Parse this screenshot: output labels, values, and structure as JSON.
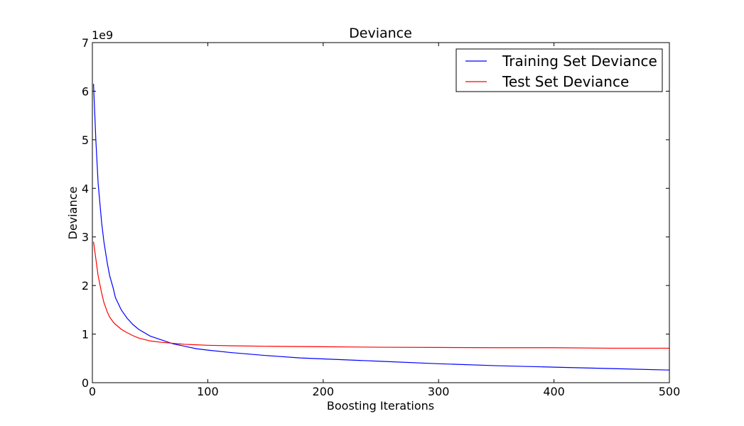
{
  "chart_data": {
    "type": "line",
    "title": "Deviance",
    "xlabel": "Boosting Iterations",
    "ylabel": "Deviance",
    "y_multiplier_label": "1e9",
    "xlim": [
      0,
      500
    ],
    "ylim": [
      0,
      7
    ],
    "xticks": [
      0,
      100,
      200,
      300,
      400,
      500
    ],
    "xtick_labels": [
      "0",
      "100",
      "200",
      "300",
      "400",
      "500"
    ],
    "yticks": [
      0,
      1,
      2,
      3,
      4,
      5,
      6,
      7
    ],
    "ytick_labels": [
      "0",
      "1",
      "2",
      "3",
      "4",
      "5",
      "6",
      "7"
    ],
    "grid": false,
    "legend_position": "top-right",
    "series": [
      {
        "name": "Training Set Deviance",
        "color": "#0000ff",
        "x": [
          1,
          3,
          5,
          8,
          10,
          13,
          15,
          18,
          20,
          25,
          30,
          35,
          40,
          50,
          60,
          70,
          80,
          90,
          100,
          120,
          150,
          180,
          200,
          250,
          300,
          350,
          400,
          450,
          500
        ],
        "y": [
          6.15,
          5.0,
          4.1,
          3.3,
          2.9,
          2.45,
          2.2,
          1.95,
          1.75,
          1.5,
          1.33,
          1.2,
          1.1,
          0.96,
          0.88,
          0.8,
          0.75,
          0.7,
          0.67,
          0.62,
          0.56,
          0.51,
          0.49,
          0.44,
          0.39,
          0.35,
          0.32,
          0.29,
          0.26
        ]
      },
      {
        "name": "Test Set Deviance",
        "color": "#ff0000",
        "x": [
          1,
          3,
          5,
          8,
          10,
          13,
          15,
          18,
          20,
          25,
          30,
          35,
          40,
          50,
          60,
          70,
          80,
          90,
          100,
          120,
          150,
          200,
          250,
          300,
          350,
          400,
          450,
          500
        ],
        "y": [
          2.9,
          2.55,
          2.2,
          1.85,
          1.65,
          1.45,
          1.35,
          1.25,
          1.2,
          1.1,
          1.03,
          0.97,
          0.92,
          0.86,
          0.83,
          0.81,
          0.79,
          0.78,
          0.77,
          0.76,
          0.75,
          0.74,
          0.73,
          0.725,
          0.72,
          0.72,
          0.71,
          0.71
        ]
      }
    ]
  }
}
